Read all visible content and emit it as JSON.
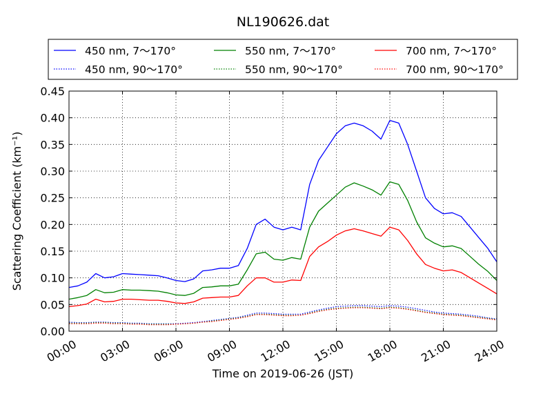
{
  "chart_data": {
    "type": "line",
    "title": "NL190626.dat",
    "xlabel": "Time on 2019-06-26 (JST)",
    "ylabel": "Scattering Coefficient (km⁻¹)",
    "ylim": [
      0,
      0.45
    ],
    "xlim": [
      "00:00",
      "24:00"
    ],
    "x_tick_labels": [
      "00:00",
      "03:00",
      "06:00",
      "09:00",
      "12:00",
      "15:00",
      "18:00",
      "21:00",
      "24:00"
    ],
    "y_tick_labels": [
      "0.00",
      "0.05",
      "0.10",
      "0.15",
      "0.20",
      "0.25",
      "0.30",
      "0.35",
      "0.40",
      "0.45"
    ],
    "grid": true,
    "legend_position": "top, above plot",
    "x_hours": [
      0,
      0.5,
      1,
      1.5,
      2,
      2.5,
      3,
      3.5,
      4,
      4.5,
      5,
      5.5,
      6,
      6.5,
      7,
      7.5,
      8,
      8.5,
      9,
      9.5,
      10,
      10.5,
      11,
      11.5,
      12,
      12.5,
      13,
      13.5,
      14,
      14.5,
      15,
      15.5,
      16,
      16.5,
      17,
      17.5,
      18,
      18.5,
      19,
      19.5,
      20,
      20.5,
      21,
      21.5,
      22,
      22.5,
      23,
      23.5,
      24
    ],
    "series": [
      {
        "name": "450 nm, 7～170°",
        "color": "#0000ff",
        "style": "solid",
        "values": [
          0.082,
          0.085,
          0.092,
          0.108,
          0.1,
          0.102,
          0.108,
          0.107,
          0.106,
          0.105,
          0.104,
          0.1,
          0.095,
          0.093,
          0.098,
          0.113,
          0.115,
          0.118,
          0.118,
          0.123,
          0.155,
          0.2,
          0.21,
          0.195,
          0.19,
          0.195,
          0.19,
          0.275,
          0.32,
          0.345,
          0.37,
          0.385,
          0.39,
          0.385,
          0.375,
          0.36,
          0.395,
          0.39,
          0.35,
          0.3,
          0.25,
          0.23,
          0.22,
          0.222,
          0.215,
          0.195,
          0.175,
          0.155,
          0.13
        ]
      },
      {
        "name": "450 nm, 90～170°",
        "color": "#0000ff",
        "style": "dotted",
        "values": [
          0.017,
          0.016,
          0.016,
          0.017,
          0.017,
          0.016,
          0.016,
          0.015,
          0.015,
          0.014,
          0.014,
          0.014,
          0.014,
          0.015,
          0.016,
          0.018,
          0.02,
          0.022,
          0.024,
          0.026,
          0.03,
          0.034,
          0.034,
          0.033,
          0.032,
          0.032,
          0.032,
          0.036,
          0.04,
          0.043,
          0.046,
          0.047,
          0.048,
          0.048,
          0.047,
          0.046,
          0.048,
          0.047,
          0.045,
          0.042,
          0.039,
          0.036,
          0.034,
          0.033,
          0.032,
          0.03,
          0.028,
          0.025,
          0.023
        ]
      },
      {
        "name": "550 nm, 7～170°",
        "color": "#008000",
        "style": "solid",
        "values": [
          0.06,
          0.063,
          0.067,
          0.078,
          0.072,
          0.073,
          0.078,
          0.077,
          0.077,
          0.076,
          0.075,
          0.072,
          0.068,
          0.067,
          0.071,
          0.082,
          0.083,
          0.085,
          0.085,
          0.088,
          0.115,
          0.145,
          0.148,
          0.135,
          0.133,
          0.138,
          0.135,
          0.195,
          0.225,
          0.24,
          0.255,
          0.27,
          0.278,
          0.272,
          0.265,
          0.255,
          0.28,
          0.275,
          0.245,
          0.205,
          0.175,
          0.165,
          0.158,
          0.16,
          0.155,
          0.14,
          0.125,
          0.112,
          0.095
        ]
      },
      {
        "name": "550 nm, 90～170°",
        "color": "#008000",
        "style": "dotted",
        "values": [
          0.015,
          0.015,
          0.015,
          0.016,
          0.016,
          0.015,
          0.015,
          0.014,
          0.014,
          0.013,
          0.013,
          0.013,
          0.013,
          0.014,
          0.015,
          0.017,
          0.019,
          0.021,
          0.023,
          0.025,
          0.028,
          0.032,
          0.032,
          0.031,
          0.03,
          0.03,
          0.03,
          0.034,
          0.038,
          0.041,
          0.043,
          0.044,
          0.045,
          0.045,
          0.044,
          0.043,
          0.045,
          0.044,
          0.042,
          0.039,
          0.036,
          0.034,
          0.032,
          0.031,
          0.03,
          0.028,
          0.026,
          0.024,
          0.022
        ]
      },
      {
        "name": "700 nm, 7～170°",
        "color": "#ff0000",
        "style": "solid",
        "values": [
          0.046,
          0.048,
          0.051,
          0.06,
          0.055,
          0.056,
          0.06,
          0.06,
          0.059,
          0.058,
          0.058,
          0.056,
          0.053,
          0.052,
          0.055,
          0.062,
          0.063,
          0.064,
          0.064,
          0.067,
          0.085,
          0.1,
          0.1,
          0.092,
          0.092,
          0.096,
          0.095,
          0.14,
          0.158,
          0.168,
          0.18,
          0.188,
          0.192,
          0.188,
          0.183,
          0.178,
          0.195,
          0.19,
          0.17,
          0.145,
          0.125,
          0.118,
          0.113,
          0.115,
          0.11,
          0.1,
          0.09,
          0.08,
          0.07
        ]
      },
      {
        "name": "700 nm, 90～170°",
        "color": "#ff0000",
        "style": "dotted",
        "values": [
          0.014,
          0.014,
          0.014,
          0.015,
          0.015,
          0.014,
          0.014,
          0.013,
          0.013,
          0.012,
          0.012,
          0.012,
          0.013,
          0.014,
          0.015,
          0.017,
          0.018,
          0.02,
          0.022,
          0.024,
          0.027,
          0.031,
          0.031,
          0.03,
          0.029,
          0.029,
          0.03,
          0.033,
          0.037,
          0.04,
          0.042,
          0.043,
          0.044,
          0.044,
          0.043,
          0.042,
          0.044,
          0.043,
          0.041,
          0.038,
          0.035,
          0.033,
          0.031,
          0.03,
          0.029,
          0.027,
          0.025,
          0.023,
          0.021
        ]
      }
    ]
  }
}
